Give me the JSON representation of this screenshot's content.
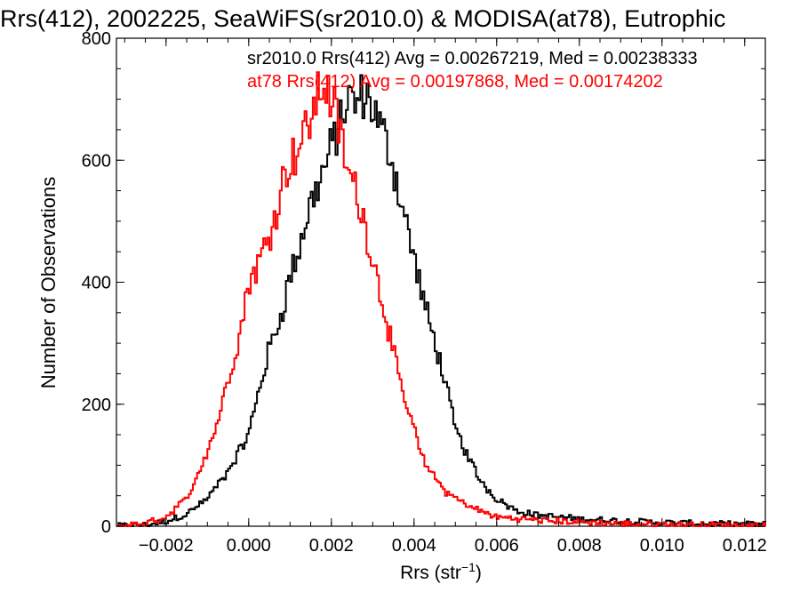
{
  "chart_data": {
    "type": "line",
    "title": "Rrs(412), 2002225, SeaWiFS(sr2010.0) & MODISA(at78), Eutrophic",
    "xlabel": "Rrs (str",
    "xlabel_sup": "−1",
    "xlabel_end": ")",
    "ylabel": "Number of Observations",
    "xlim": [
      -0.0032,
      0.0125
    ],
    "ylim": [
      0,
      800
    ],
    "grid": false,
    "legend_placement": "top-right",
    "x_ticks": [
      {
        "v": -0.002,
        "label": "−0.002"
      },
      {
        "v": 0.0,
        "label": "0.000"
      },
      {
        "v": 0.002,
        "label": "0.002"
      },
      {
        "v": 0.004,
        "label": "0.004"
      },
      {
        "v": 0.006,
        "label": "0.006"
      },
      {
        "v": 0.008,
        "label": "0.008"
      },
      {
        "v": 0.01,
        "label": "0.010"
      },
      {
        "v": 0.012,
        "label": "0.012"
      }
    ],
    "y_ticks": [
      {
        "v": 0,
        "label": "0"
      },
      {
        "v": 200,
        "label": "200"
      },
      {
        "v": 400,
        "label": "400"
      },
      {
        "v": 600,
        "label": "600"
      },
      {
        "v": 800,
        "label": "800"
      }
    ],
    "series": [
      {
        "name": "sr2010.0",
        "color": "#000000",
        "annotation": "sr2010.0 Rrs(412) Avg = 0.00267219, Med = 0.00238333",
        "points": [
          [
            -0.0032,
            0
          ],
          [
            -0.0025,
            2
          ],
          [
            -0.002,
            8
          ],
          [
            -0.0015,
            20
          ],
          [
            -0.001,
            45
          ],
          [
            -0.0005,
            90
          ],
          [
            0.0,
            150
          ],
          [
            0.0002,
            210
          ],
          [
            0.0005,
            290
          ],
          [
            0.0008,
            350
          ],
          [
            0.001,
            410
          ],
          [
            0.0012,
            450
          ],
          [
            0.0015,
            530
          ],
          [
            0.0018,
            580
          ],
          [
            0.002,
            620
          ],
          [
            0.0022,
            660
          ],
          [
            0.0024,
            700
          ],
          [
            0.0026,
            690
          ],
          [
            0.0028,
            710
          ],
          [
            0.003,
            690
          ],
          [
            0.0032,
            650
          ],
          [
            0.0034,
            620
          ],
          [
            0.0036,
            560
          ],
          [
            0.0038,
            500
          ],
          [
            0.004,
            440
          ],
          [
            0.0042,
            380
          ],
          [
            0.0044,
            325
          ],
          [
            0.0046,
            280
          ],
          [
            0.0048,
            220
          ],
          [
            0.005,
            160
          ],
          [
            0.0053,
            115
          ],
          [
            0.0056,
            75
          ],
          [
            0.006,
            45
          ],
          [
            0.0065,
            25
          ],
          [
            0.007,
            18
          ],
          [
            0.008,
            12
          ],
          [
            0.009,
            9
          ],
          [
            0.01,
            6
          ],
          [
            0.011,
            4
          ],
          [
            0.0125,
            3
          ]
        ]
      },
      {
        "name": "at78",
        "color": "#ff0000",
        "annotation": "at78 Rrs(412) Avg = 0.00197868, Med = 0.00174202",
        "points": [
          [
            -0.0032,
            0
          ],
          [
            -0.0025,
            5
          ],
          [
            -0.002,
            15
          ],
          [
            -0.0015,
            45
          ],
          [
            -0.0012,
            90
          ],
          [
            -0.0008,
            160
          ],
          [
            -0.0005,
            240
          ],
          [
            -0.0002,
            320
          ],
          [
            0.0,
            400
          ],
          [
            0.0003,
            440
          ],
          [
            0.0006,
            500
          ],
          [
            0.0008,
            560
          ],
          [
            0.001,
            600
          ],
          [
            0.0012,
            620
          ],
          [
            0.0014,
            650
          ],
          [
            0.0016,
            690
          ],
          [
            0.0017,
            710
          ],
          [
            0.0018,
            730
          ],
          [
            0.002,
            700
          ],
          [
            0.0022,
            650
          ],
          [
            0.0024,
            580
          ],
          [
            0.0026,
            550
          ],
          [
            0.0028,
            500
          ],
          [
            0.003,
            440
          ],
          [
            0.0032,
            380
          ],
          [
            0.0034,
            320
          ],
          [
            0.0036,
            250
          ],
          [
            0.0038,
            200
          ],
          [
            0.004,
            160
          ],
          [
            0.0042,
            110
          ],
          [
            0.0045,
            80
          ],
          [
            0.0048,
            55
          ],
          [
            0.0052,
            38
          ],
          [
            0.0056,
            25
          ],
          [
            0.006,
            15
          ],
          [
            0.007,
            10
          ],
          [
            0.008,
            7
          ],
          [
            0.009,
            4
          ],
          [
            0.01,
            3
          ],
          [
            0.0125,
            1
          ]
        ]
      }
    ]
  }
}
